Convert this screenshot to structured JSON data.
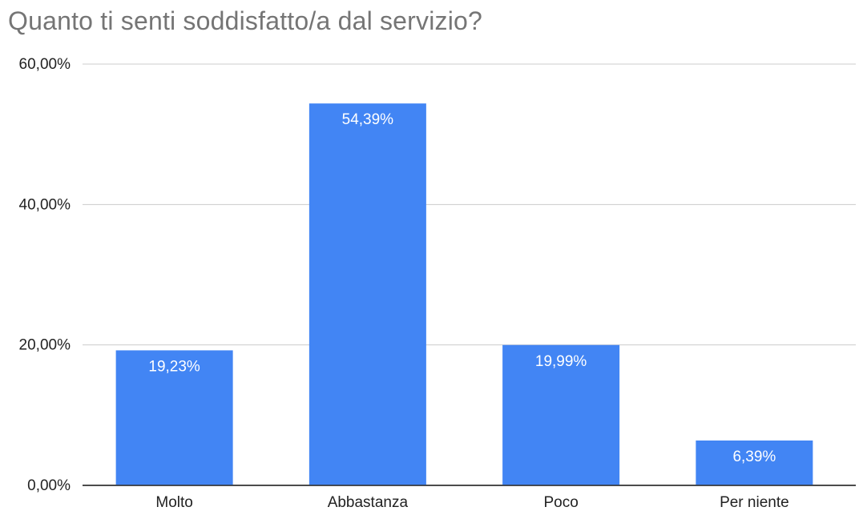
{
  "chart_data": {
    "type": "bar",
    "title": "Quanto ti senti soddisfatto/a dal servizio?",
    "xlabel": "",
    "ylabel": "",
    "categories": [
      "Molto",
      "Abbastanza",
      "Poco",
      "Per niente"
    ],
    "values": [
      19.23,
      54.39,
      19.99,
      6.39
    ],
    "data_labels": [
      "19,23%",
      "54,39%",
      "19,99%",
      "6,39%"
    ],
    "ylim": [
      0,
      60
    ],
    "yticks": [
      0,
      20,
      40,
      60
    ],
    "ytick_labels": [
      "0,00%",
      "20,00%",
      "40,00%",
      "60,00%"
    ],
    "grid": true,
    "legend": "none",
    "bar_color": "#4285f4"
  }
}
